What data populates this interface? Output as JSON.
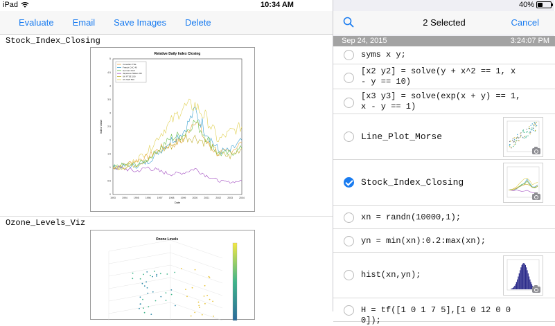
{
  "status_bar": {
    "device": "iPad",
    "time": "10:34 AM",
    "battery_percent": "40%",
    "battery_level": 0.4
  },
  "toolbar": {
    "evaluate": "Evaluate",
    "email": "Email",
    "save_images": "Save Images",
    "delete": "Delete"
  },
  "results": [
    {
      "title": "Stock_Index_Closing",
      "chart_data": {
        "type": "line",
        "title": "Relative Daily Index Closing",
        "xlabel": "Date",
        "ylabel": "Index Value",
        "x": [
          1993,
          1994,
          1995,
          1996,
          1997,
          1998,
          1999,
          2000,
          2001,
          2002,
          2003,
          2004
        ],
        "xlim": [
          1993,
          2004
        ],
        "ylim": [
          0,
          5
        ],
        "yticks": [
          "0",
          "0.5",
          "1",
          "1.5",
          "2",
          "2.5",
          "3",
          "3.5",
          "4",
          "4.5",
          "5"
        ],
        "legend_position": "top-left",
        "series": [
          {
            "name": "Canadian TSE",
            "color": "#e8a23a",
            "values": [
              1.0,
              1.1,
              1.25,
              1.4,
              1.7,
              1.85,
              2.0,
              2.8,
              1.9,
              1.5,
              1.6,
              1.9
            ]
          },
          {
            "name": "French CAC 40",
            "color": "#3aa0d0",
            "values": [
              1.0,
              1.05,
              1.05,
              1.2,
              1.6,
              2.0,
              2.3,
              3.1,
              2.3,
              1.6,
              1.6,
              2.0
            ]
          },
          {
            "name": "German DAX",
            "color": "#6abf4b",
            "values": [
              1.0,
              1.1,
              1.1,
              1.3,
              1.7,
              2.1,
              2.2,
              2.7,
              2.1,
              1.5,
              1.5,
              1.7
            ]
          },
          {
            "name": "Japanese Nikkei 225",
            "color": "#a04ac0",
            "values": [
              1.0,
              0.95,
              0.85,
              1.0,
              0.85,
              0.75,
              0.8,
              0.95,
              0.7,
              0.5,
              0.45,
              0.5
            ]
          },
          {
            "name": "UK FTSE 100",
            "color": "#c0b030",
            "values": [
              1.0,
              1.0,
              1.1,
              1.3,
              1.6,
              1.8,
              2.1,
              2.1,
              1.9,
              1.5,
              1.4,
              1.7
            ]
          },
          {
            "name": "US S&P 500",
            "color": "#e0d050",
            "values": [
              1.0,
              1.0,
              1.3,
              1.6,
              2.2,
              2.7,
              3.2,
              3.3,
              2.8,
              2.0,
              2.3,
              2.5
            ]
          }
        ]
      }
    },
    {
      "title": "Ozone_Levels_Viz",
      "chart_data": {
        "type": "scatter",
        "title": "Ozone Levels"
      }
    }
  ],
  "panel": {
    "title": "2 Selected",
    "cancel": "Cancel"
  },
  "session": {
    "date": "Sep 24, 2015",
    "time": "3:24:07 PM"
  },
  "history": [
    {
      "text": "syms x y;",
      "selected": false
    },
    {
      "text": "[x2 y2] = solve(y + x^2 == 1, x - y == 10)",
      "selected": false
    },
    {
      "text": "[x3 y3] = solve(exp(x + y) == 1, x - y == 1)",
      "selected": false
    },
    {
      "text": "Line_Plot_Morse",
      "selected": false,
      "thumbnail": true
    },
    {
      "text": "Stock_Index_Closing",
      "selected": true,
      "thumbnail": true
    },
    {
      "text": "xn = randn(10000,1);",
      "selected": false
    },
    {
      "text": "yn = min(xn):0.2:max(xn);",
      "selected": false
    },
    {
      "text": "hist(xn,yn);",
      "selected": false,
      "thumbnail": true
    },
    {
      "text": "H = tf([1 0 1 7 5],[1 0 12 0 0 0]);",
      "selected": false
    }
  ],
  "colors": {
    "accent": "#1a7cf0",
    "date_bar": "#a3a3a3",
    "hist_bars": "#2a2a8a"
  }
}
